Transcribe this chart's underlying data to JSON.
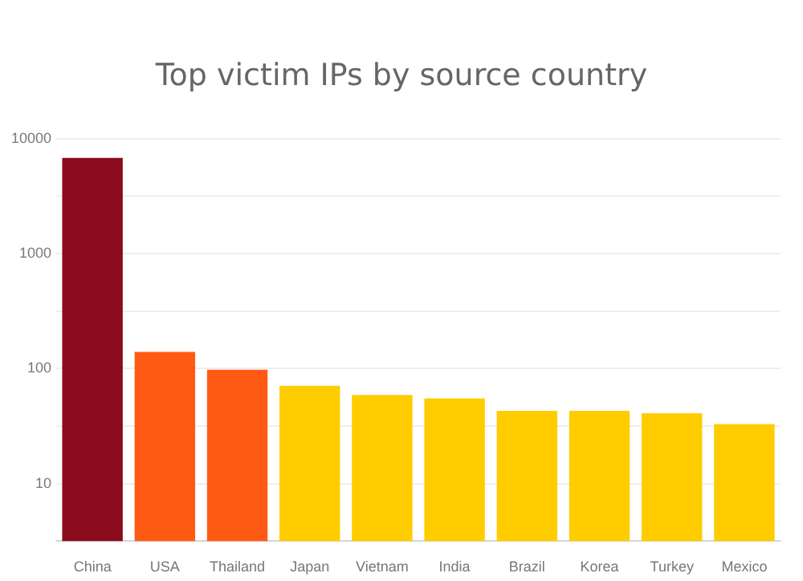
{
  "chart_data": {
    "type": "bar",
    "title": "Top victim IPs by source country",
    "categories": [
      "China",
      "USA",
      "Thailand",
      "Japan",
      "Vietnam",
      "India",
      "Brazil",
      "Korea",
      "Turkey",
      "Mexico"
    ],
    "values": [
      6800,
      140,
      98,
      71,
      59,
      55,
      43,
      43,
      41,
      33
    ],
    "colors": [
      "#8b0a1e",
      "#ff5a14",
      "#ff5a14",
      "#ffcc00",
      "#ffcc00",
      "#ffcc00",
      "#ffcc00",
      "#ffcc00",
      "#ffcc00",
      "#ffcc00"
    ],
    "log": true,
    "ylim": [
      3.16,
      10000
    ],
    "yticks": [
      {
        "value": 3.16,
        "label": null
      },
      10,
      {
        "value": 31.6,
        "label": null
      },
      100,
      {
        "value": 316,
        "label": null
      },
      1000,
      {
        "value": 3160,
        "label": null
      },
      10000
    ],
    "grid": "y",
    "legend": false
  }
}
